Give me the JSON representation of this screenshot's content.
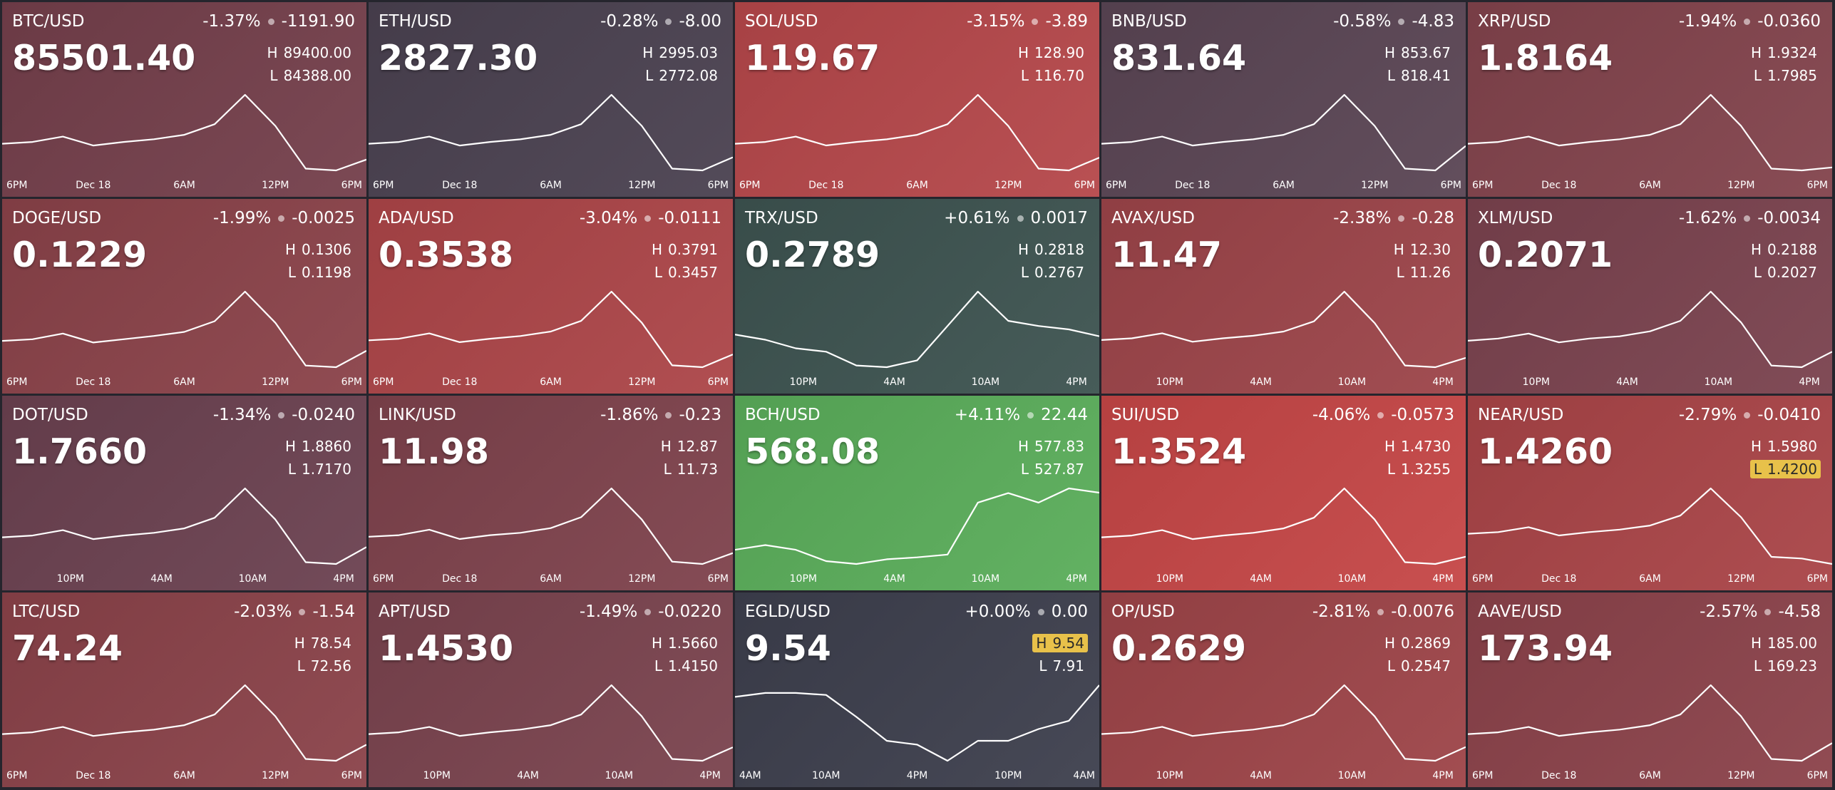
{
  "high_label": "H",
  "low_label": "L",
  "tiles": [
    {
      "pair": "BTC/USD",
      "change_percent": "-1.37%",
      "change": "-1191.90",
      "price": "85501.40",
      "high": "89400.00",
      "low": "84388.00",
      "color": "#743f4b",
      "chart": {
        "values": [
          86393,
          86493,
          86794,
          86293,
          86493,
          86644,
          86894,
          87495,
          89149,
          87395,
          84989,
          84889,
          85501
        ],
        "xlim": [
          0,
          24
        ],
        "xticks": [
          {
            "value": 0,
            "label": "6PM"
          },
          {
            "value": 6,
            "label": "Dec 18"
          },
          {
            "value": 12,
            "label": "6AM"
          },
          {
            "value": 18,
            "label": "12PM"
          },
          {
            "value": 24,
            "label": "6PM"
          }
        ]
      }
    },
    {
      "pair": "ETH/USD",
      "change_percent": "-0.28%",
      "change": "-8.00",
      "price": "2827.30",
      "high": "2995.03",
      "low": "2772.08",
      "color": "#4a4150",
      "chart": {
        "values": [
          2861.26,
          2865.72,
          2879.1,
          2856.8,
          2865.72,
          2872.41,
          2883.56,
          2910.31,
          2983.88,
          2905.85,
          2798.83,
          2794.38,
          2827.3
        ],
        "xlim": [
          0,
          24
        ],
        "xticks": [
          {
            "value": 0,
            "label": "6PM"
          },
          {
            "value": 6,
            "label": "Dec 18"
          },
          {
            "value": 12,
            "label": "6AM"
          },
          {
            "value": 18,
            "label": "12PM"
          },
          {
            "value": 24,
            "label": "6PM"
          }
        ]
      }
    },
    {
      "pair": "SOL/USD",
      "change_percent": "-3.15%",
      "change": "-3.89",
      "price": "119.67",
      "high": "128.90",
      "low": "116.70",
      "color": "#b5474a",
      "chart": {
        "values": [
          121.58,
          121.82,
          122.56,
          121.34,
          121.82,
          122.19,
          122.8,
          124.26,
          128.29,
          124.02,
          118.16,
          117.92,
          119.67
        ],
        "xlim": [
          0,
          24
        ],
        "xticks": [
          {
            "value": 0,
            "label": "6PM"
          },
          {
            "value": 6,
            "label": "Dec 18"
          },
          {
            "value": 12,
            "label": "6AM"
          },
          {
            "value": 18,
            "label": "12PM"
          },
          {
            "value": 24,
            "label": "6PM"
          }
        ]
      }
    },
    {
      "pair": "BNB/USD",
      "change_percent": "-0.58%",
      "change": "-4.83",
      "price": "831.64",
      "high": "853.67",
      "low": "818.41",
      "color": "#5a4554",
      "chart": {
        "values": [
          832.51,
          833.22,
          835.33,
          831.81,
          833.22,
          834.28,
          836.04,
          840.27,
          851.91,
          839.57,
          822.64,
          821.94,
          831.64
        ],
        "xlim": [
          0,
          24
        ],
        "xticks": [
          {
            "value": 0,
            "label": "6PM"
          },
          {
            "value": 6,
            "label": "Dec 18"
          },
          {
            "value": 12,
            "label": "6AM"
          },
          {
            "value": 18,
            "label": "12PM"
          },
          {
            "value": 24,
            "label": "6PM"
          }
        ]
      }
    },
    {
      "pair": "XRP/USD",
      "change_percent": "-1.94%",
      "change": "-0.0360",
      "price": "1.8164",
      "high": "1.9324",
      "low": "1.7985",
      "color": "#82434c",
      "chart": {
        "values": [
          1.8521,
          1.8547,
          1.8628,
          1.8494,
          1.8547,
          1.8588,
          1.8655,
          1.8815,
          1.9257,
          1.8788,
          1.8146,
          1.8119,
          1.8164
        ],
        "xlim": [
          0,
          24
        ],
        "xticks": [
          {
            "value": 0,
            "label": "6PM"
          },
          {
            "value": 6,
            "label": "Dec 18"
          },
          {
            "value": 12,
            "label": "6AM"
          },
          {
            "value": 18,
            "label": "12PM"
          },
          {
            "value": 24,
            "label": "6PM"
          }
        ]
      }
    },
    {
      "pair": "DOGE/USD",
      "change_percent": "-1.99%",
      "change": "-0.0025",
      "price": "0.1229",
      "high": "0.1306",
      "low": "0.1198",
      "color": "#8a4249",
      "chart": {
        "values": [
          0.1241,
          0.1243,
          0.125,
          0.1239,
          0.1243,
          0.1247,
          0.1252,
          0.1265,
          0.1301,
          0.1263,
          0.1211,
          0.1209,
          0.1229
        ],
        "xlim": [
          0,
          24
        ],
        "xticks": [
          {
            "value": 0,
            "label": "6PM"
          },
          {
            "value": 6,
            "label": "Dec 18"
          },
          {
            "value": 12,
            "label": "6AM"
          },
          {
            "value": 18,
            "label": "12PM"
          },
          {
            "value": 24,
            "label": "6PM"
          }
        ]
      }
    },
    {
      "pair": "ADA/USD",
      "change_percent": "-3.04%",
      "change": "-0.0111",
      "price": "0.3538",
      "high": "0.3791",
      "low": "0.3457",
      "color": "#ac4548",
      "chart": {
        "values": [
          0.3591,
          0.3597,
          0.3617,
          0.3584,
          0.3597,
          0.3607,
          0.3624,
          0.3664,
          0.3774,
          0.3657,
          0.3497,
          0.349,
          0.3538
        ],
        "xlim": [
          0,
          24
        ],
        "xticks": [
          {
            "value": 0,
            "label": "6PM"
          },
          {
            "value": 6,
            "label": "Dec 18"
          },
          {
            "value": 12,
            "label": "6AM"
          },
          {
            "value": 18,
            "label": "12PM"
          },
          {
            "value": 24,
            "label": "6PM"
          }
        ]
      }
    },
    {
      "pair": "TRX/USD",
      "change_percent": "+0.61%",
      "change": "0.0017",
      "price": "0.2789",
      "high": "0.2818",
      "low": "0.2767",
      "color": "#3d5350",
      "chart": {
        "values": [
          0.279,
          0.2787,
          0.2782,
          0.278,
          0.2772,
          0.2771,
          0.2775,
          0.2795,
          0.2815,
          0.2798,
          0.2795,
          0.2793,
          0.2789
        ],
        "xlim": [
          0,
          24
        ],
        "xticks": [
          {
            "value": 4.5,
            "label": "10PM"
          },
          {
            "value": 10.5,
            "label": "4AM"
          },
          {
            "value": 16.5,
            "label": "10AM"
          },
          {
            "value": 22.5,
            "label": "4PM"
          }
        ]
      }
    },
    {
      "pair": "AVAX/USD",
      "change_percent": "-2.38%",
      "change": "-0.28",
      "price": "11.47",
      "high": "12.30",
      "low": "11.26",
      "color": "#9c4449",
      "chart": {
        "values": [
          11.68,
          11.7,
          11.76,
          11.66,
          11.7,
          11.73,
          11.78,
          11.9,
          12.25,
          11.88,
          11.38,
          11.36,
          11.47
        ],
        "xlim": [
          0,
          24
        ],
        "xticks": [
          {
            "value": 4.5,
            "label": "10PM"
          },
          {
            "value": 10.5,
            "label": "4AM"
          },
          {
            "value": 16.5,
            "label": "10AM"
          },
          {
            "value": 22.5,
            "label": "4PM"
          }
        ]
      }
    },
    {
      "pair": "XLM/USD",
      "change_percent": "-1.62%",
      "change": "-0.0034",
      "price": "0.2071",
      "high": "0.2188",
      "low": "0.2027",
      "color": "#7a424e",
      "chart": {
        "values": [
          0.2091,
          0.2095,
          0.2104,
          0.2088,
          0.2095,
          0.2099,
          0.2108,
          0.2127,
          0.218,
          0.2124,
          0.2046,
          0.2043,
          0.2071
        ],
        "xlim": [
          0,
          24
        ],
        "xticks": [
          {
            "value": 4.5,
            "label": "10PM"
          },
          {
            "value": 10.5,
            "label": "4AM"
          },
          {
            "value": 16.5,
            "label": "10AM"
          },
          {
            "value": 22.5,
            "label": "4PM"
          }
        ]
      }
    },
    {
      "pair": "DOT/USD",
      "change_percent": "-1.34%",
      "change": "-0.0240",
      "price": "1.7660",
      "high": "1.8860",
      "low": "1.7170",
      "color": "#6b4150",
      "chart": {
        "values": [
          1.7846,
          1.788,
          1.7981,
          1.7812,
          1.788,
          1.7931,
          1.8015,
          1.8218,
          1.8776,
          1.8184,
          1.7373,
          1.7339,
          1.766
        ],
        "xlim": [
          0,
          24
        ],
        "xticks": [
          {
            "value": 4.5,
            "label": "10PM"
          },
          {
            "value": 10.5,
            "label": "4AM"
          },
          {
            "value": 16.5,
            "label": "10AM"
          },
          {
            "value": 22.5,
            "label": "4PM"
          }
        ]
      }
    },
    {
      "pair": "LINK/USD",
      "change_percent": "-1.86%",
      "change": "-0.23",
      "price": "11.98",
      "high": "12.87",
      "low": "11.73",
      "color": "#7e424c",
      "chart": {
        "values": [
          12.19,
          12.21,
          12.28,
          12.16,
          12.21,
          12.24,
          12.3,
          12.44,
          12.81,
          12.41,
          11.87,
          11.84,
          11.98
        ],
        "xlim": [
          0,
          24
        ],
        "xticks": [
          {
            "value": 0,
            "label": "6PM"
          },
          {
            "value": 6,
            "label": "Dec 18"
          },
          {
            "value": 12,
            "label": "6AM"
          },
          {
            "value": 18,
            "label": "12PM"
          },
          {
            "value": 24,
            "label": "6PM"
          }
        ]
      }
    },
    {
      "pair": "BCH/USD",
      "change_percent": "+4.11%",
      "change": "22.44",
      "price": "568.08",
      "high": "577.83",
      "low": "527.87",
      "color": "#5aad5a",
      "chart": {
        "values": [
          537.86,
          540.36,
          537.86,
          531.87,
          530.37,
          532.87,
          533.87,
          535.36,
          562.84,
          567.84,
          562.84,
          570.34,
          568.08
        ],
        "xlim": [
          0,
          24
        ],
        "xticks": [
          {
            "value": 4.5,
            "label": "10PM"
          },
          {
            "value": 10.5,
            "label": "4AM"
          },
          {
            "value": 16.5,
            "label": "10AM"
          },
          {
            "value": 22.5,
            "label": "4PM"
          }
        ]
      }
    },
    {
      "pair": "SUI/USD",
      "change_percent": "-4.06%",
      "change": "-0.0573",
      "price": "1.3524",
      "high": "1.4730",
      "low": "1.3255",
      "color": "#c54646",
      "chart": {
        "values": [
          1.3845,
          1.3875,
          1.3963,
          1.3816,
          1.3875,
          1.3919,
          1.3993,
          1.417,
          1.4656,
          1.414,
          1.3432,
          1.3403,
          1.3524
        ],
        "xlim": [
          0,
          24
        ],
        "xticks": [
          {
            "value": 4.5,
            "label": "10PM"
          },
          {
            "value": 10.5,
            "label": "4AM"
          },
          {
            "value": 16.5,
            "label": "10AM"
          },
          {
            "value": 22.5,
            "label": "4PM"
          }
        ]
      }
    },
    {
      "pair": "NEAR/USD",
      "change_percent": "-2.79%",
      "change": "-0.0410",
      "price": "1.4260",
      "high": "1.5980",
      "low": "1.4200",
      "color": "#a94447",
      "highlight": "low",
      "chart": {
        "values": [
          1.4912,
          1.4948,
          1.5054,
          1.4876,
          1.4948,
          1.5001,
          1.509,
          1.5304,
          1.5891,
          1.5268,
          1.4414,
          1.4378,
          1.426
        ],
        "xlim": [
          0,
          24
        ],
        "xticks": [
          {
            "value": 0,
            "label": "6PM"
          },
          {
            "value": 6,
            "label": "Dec 18"
          },
          {
            "value": 12,
            "label": "6AM"
          },
          {
            "value": 18,
            "label": "12PM"
          },
          {
            "value": 24,
            "label": "6PM"
          }
        ]
      }
    },
    {
      "pair": "LTC/USD",
      "change_percent": "-2.03%",
      "change": "-1.54",
      "price": "74.24",
      "high": "78.54",
      "low": "72.56",
      "color": "#8a4249",
      "chart": {
        "values": [
          74.95,
          75.07,
          75.43,
          74.83,
          75.07,
          75.25,
          75.55,
          76.27,
          78.24,
          76.15,
          73.28,
          73.16,
          74.24
        ],
        "xlim": [
          0,
          24
        ],
        "xticks": [
          {
            "value": 0,
            "label": "6PM"
          },
          {
            "value": 6,
            "label": "Dec 18"
          },
          {
            "value": 12,
            "label": "6AM"
          },
          {
            "value": 18,
            "label": "12PM"
          },
          {
            "value": 24,
            "label": "6PM"
          }
        ]
      }
    },
    {
      "pair": "APT/USD",
      "change_percent": "-1.49%",
      "change": "-0.0220",
      "price": "1.4530",
      "high": "1.5660",
      "low": "1.4150",
      "color": "#7a434e",
      "chart": {
        "values": [
          1.4754,
          1.4784,
          1.4875,
          1.4724,
          1.4784,
          1.483,
          1.4905,
          1.5086,
          1.5585,
          1.5056,
          1.4331,
          1.4301,
          1.453
        ],
        "xlim": [
          0,
          24
        ],
        "xticks": [
          {
            "value": 4.5,
            "label": "10PM"
          },
          {
            "value": 10.5,
            "label": "4AM"
          },
          {
            "value": 16.5,
            "label": "10AM"
          },
          {
            "value": 22.5,
            "label": "4PM"
          }
        ]
      }
    },
    {
      "pair": "EGLD/USD",
      "change_percent": "+0.00%",
      "change": "0.00",
      "price": "9.54",
      "high": "9.54",
      "low": "7.91",
      "color": "#3d3f4d",
      "highlight": "high",
      "chart": {
        "values": [
          9.3,
          9.38,
          9.38,
          9.34,
          8.89,
          8.4,
          8.32,
          7.99,
          8.4,
          8.4,
          8.64,
          8.81,
          9.54
        ],
        "xlim": [
          0,
          24
        ],
        "xticks": [
          {
            "value": 0,
            "label": "4AM"
          },
          {
            "value": 6,
            "label": "10AM"
          },
          {
            "value": 12,
            "label": "4PM"
          },
          {
            "value": 18,
            "label": "10PM"
          },
          {
            "value": 24,
            "label": "4AM"
          }
        ]
      }
    },
    {
      "pair": "OP/USD",
      "change_percent": "-2.81%",
      "change": "-0.0076",
      "price": "0.2629",
      "high": "0.2869",
      "low": "0.2547",
      "color": "#9d4448",
      "chart": {
        "values": [
          0.2676,
          0.2682,
          0.2702,
          0.2669,
          0.2682,
          0.2692,
          0.2708,
          0.2747,
          0.2853,
          0.274,
          0.2586,
          0.2579,
          0.2629
        ],
        "xlim": [
          0,
          24
        ],
        "xticks": [
          {
            "value": 4.5,
            "label": "10PM"
          },
          {
            "value": 10.5,
            "label": "4AM"
          },
          {
            "value": 16.5,
            "label": "10AM"
          },
          {
            "value": 22.5,
            "label": "4PM"
          }
        ]
      }
    },
    {
      "pair": "AAVE/USD",
      "change_percent": "-2.57%",
      "change": "-4.58",
      "price": "173.94",
      "high": "185.00",
      "low": "169.23",
      "color": "#8b424a",
      "chart": {
        "values": [
          175.54,
          175.85,
          176.8,
          175.22,
          175.85,
          176.33,
          177.12,
          179.01,
          184.21,
          178.69,
          171.12,
          170.81,
          173.94
        ],
        "xlim": [
          0,
          24
        ],
        "xticks": [
          {
            "value": 0,
            "label": "6PM"
          },
          {
            "value": 6,
            "label": "Dec 18"
          },
          {
            "value": 12,
            "label": "6AM"
          },
          {
            "value": 18,
            "label": "12PM"
          },
          {
            "value": 24,
            "label": "6PM"
          }
        ]
      }
    }
  ]
}
